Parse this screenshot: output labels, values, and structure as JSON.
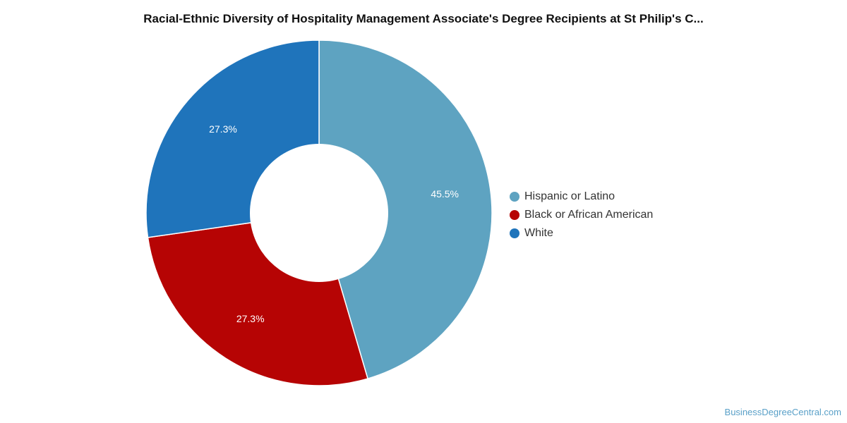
{
  "chart_data": {
    "type": "pie",
    "title": "Racial-Ethnic Diversity of Hospitality Management Associate's Degree Recipients at St Philip's C...",
    "donut": true,
    "legend_position": "right",
    "slices": [
      {
        "name": "Hispanic or Latino",
        "value": 45.5,
        "label": "45.5%",
        "color": "#5ea3c1"
      },
      {
        "name": "Black or African American",
        "value": 27.3,
        "label": "27.3%",
        "color": "#b60404"
      },
      {
        "name": "White",
        "value": 27.3,
        "label": "27.3%",
        "color": "#1f74bb"
      }
    ]
  },
  "watermark": "BusinessDegreeCentral.com"
}
